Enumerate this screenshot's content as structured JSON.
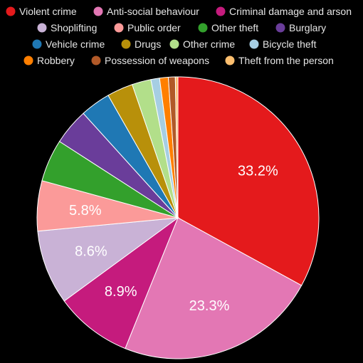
{
  "chart_data": {
    "type": "pie",
    "title": "",
    "legend_position": "top",
    "slices": [
      {
        "name": "Violent crime",
        "value": 33.2,
        "color": "#e41a1c",
        "label": "33.2%"
      },
      {
        "name": "Anti-social behaviour",
        "value": 23.3,
        "color": "#e377b4",
        "label": "23.3%"
      },
      {
        "name": "Criminal damage and arson",
        "value": 8.9,
        "color": "#c51b7d",
        "label": "8.9%"
      },
      {
        "name": "Shoplifting",
        "value": 8.6,
        "color": "#c9b2d6",
        "label": "8.6%"
      },
      {
        "name": "Public order",
        "value": 5.8,
        "color": "#fb9a99",
        "label": "5.8%"
      },
      {
        "name": "Other theft",
        "value": 4.9,
        "color": "#33a02c",
        "label": ""
      },
      {
        "name": "Burglary",
        "value": 4.2,
        "color": "#6a3d9a",
        "label": ""
      },
      {
        "name": "Vehicle crime",
        "value": 3.5,
        "color": "#1f78b4",
        "label": ""
      },
      {
        "name": "Drugs",
        "value": 3.0,
        "color": "#b8900a",
        "label": ""
      },
      {
        "name": "Other crime",
        "value": 2.2,
        "color": "#b2df8a",
        "label": ""
      },
      {
        "name": "Bicycle theft",
        "value": 1.0,
        "color": "#a6cee3",
        "label": ""
      },
      {
        "name": "Robbery",
        "value": 1.0,
        "color": "#ff7f00",
        "label": ""
      },
      {
        "name": "Possession of weapons",
        "value": 0.8,
        "color": "#b15928",
        "label": ""
      },
      {
        "name": "Theft from the person",
        "value": 0.3,
        "color": "#fdbf6f",
        "label": ""
      }
    ]
  }
}
